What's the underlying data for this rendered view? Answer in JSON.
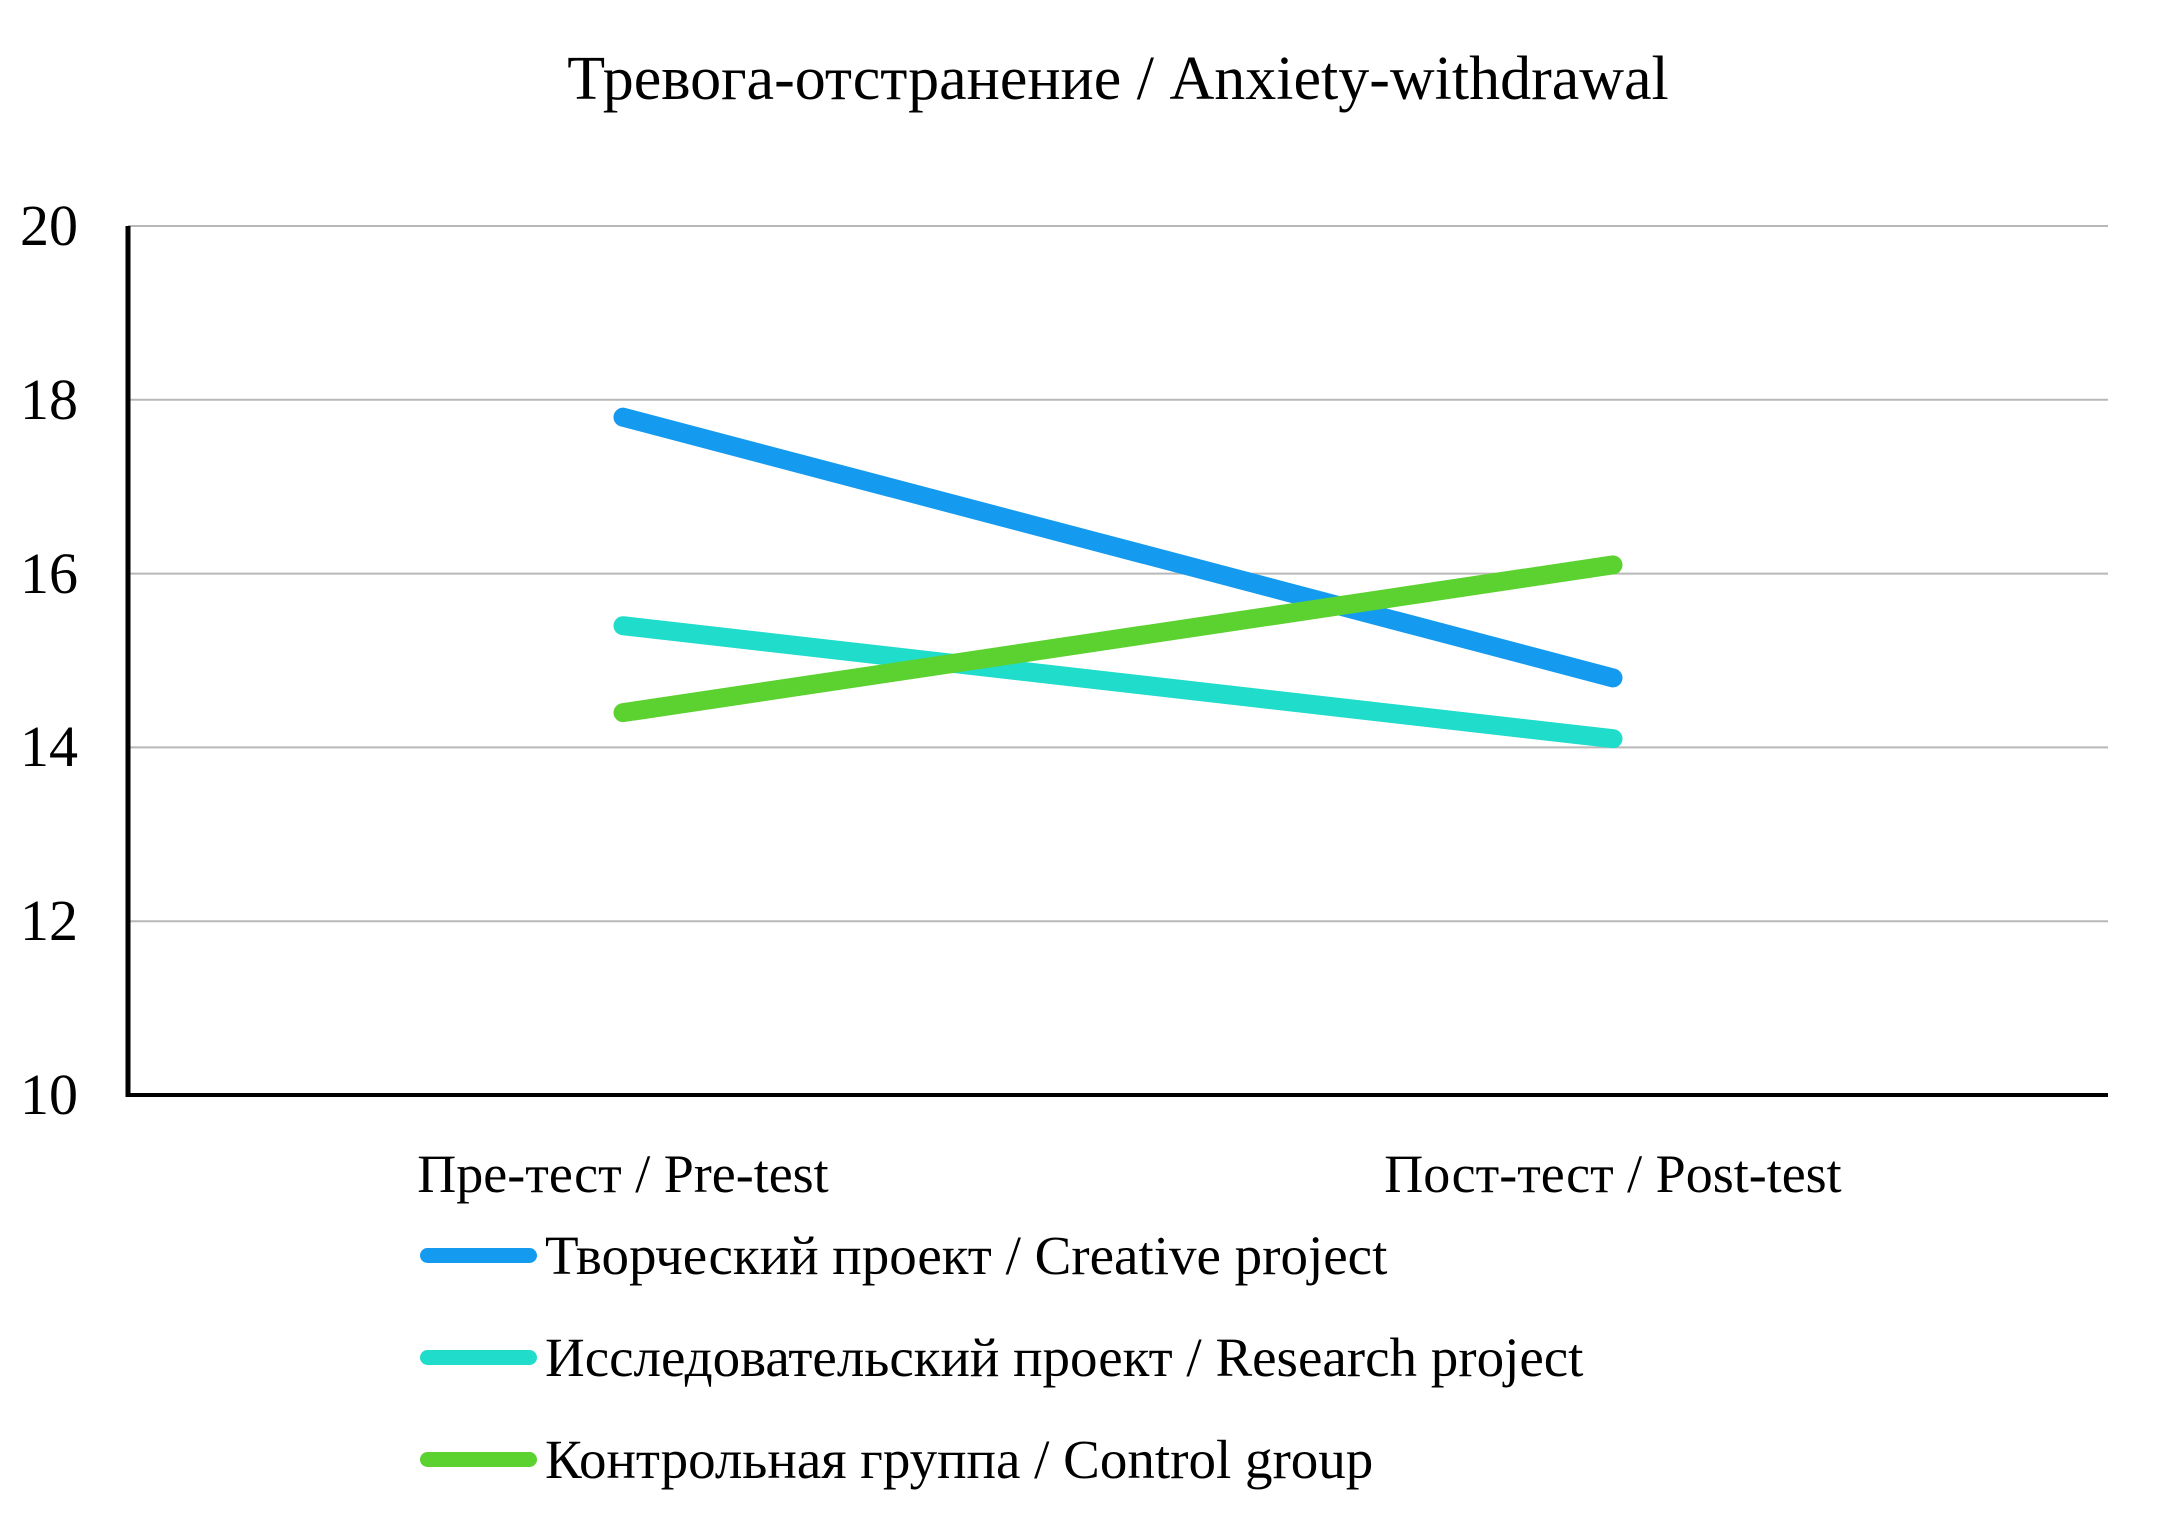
{
  "window": {
    "background": "#ffffff",
    "text_color": "#000000"
  },
  "chart_data": {
    "type": "line",
    "title": "Тревога-отстранение / Anxiety-withdrawal",
    "categories": [
      "Пре-тест / Pre-test",
      "Пост-тест / Post-test"
    ],
    "series": [
      {
        "name": "Творческий проект / Creative project",
        "color": "#149BEF",
        "values": [
          17.8,
          14.8
        ]
      },
      {
        "name": "Исследовательский проект / Research project",
        "color": "#20DCCB",
        "values": [
          15.4,
          14.1
        ]
      },
      {
        "name": "Контрольная группа / Control group",
        "color": "#5BD22F",
        "values": [
          14.4,
          16.1
        ]
      }
    ],
    "xlabel": "",
    "ylabel": "",
    "ylim": [
      10,
      20
    ],
    "yticks": [
      10,
      12,
      14,
      16,
      18,
      20
    ],
    "grid": true,
    "legend_position": "bottom-left",
    "axis_color": "#000000",
    "gridline_color": "#B8B8B8"
  }
}
